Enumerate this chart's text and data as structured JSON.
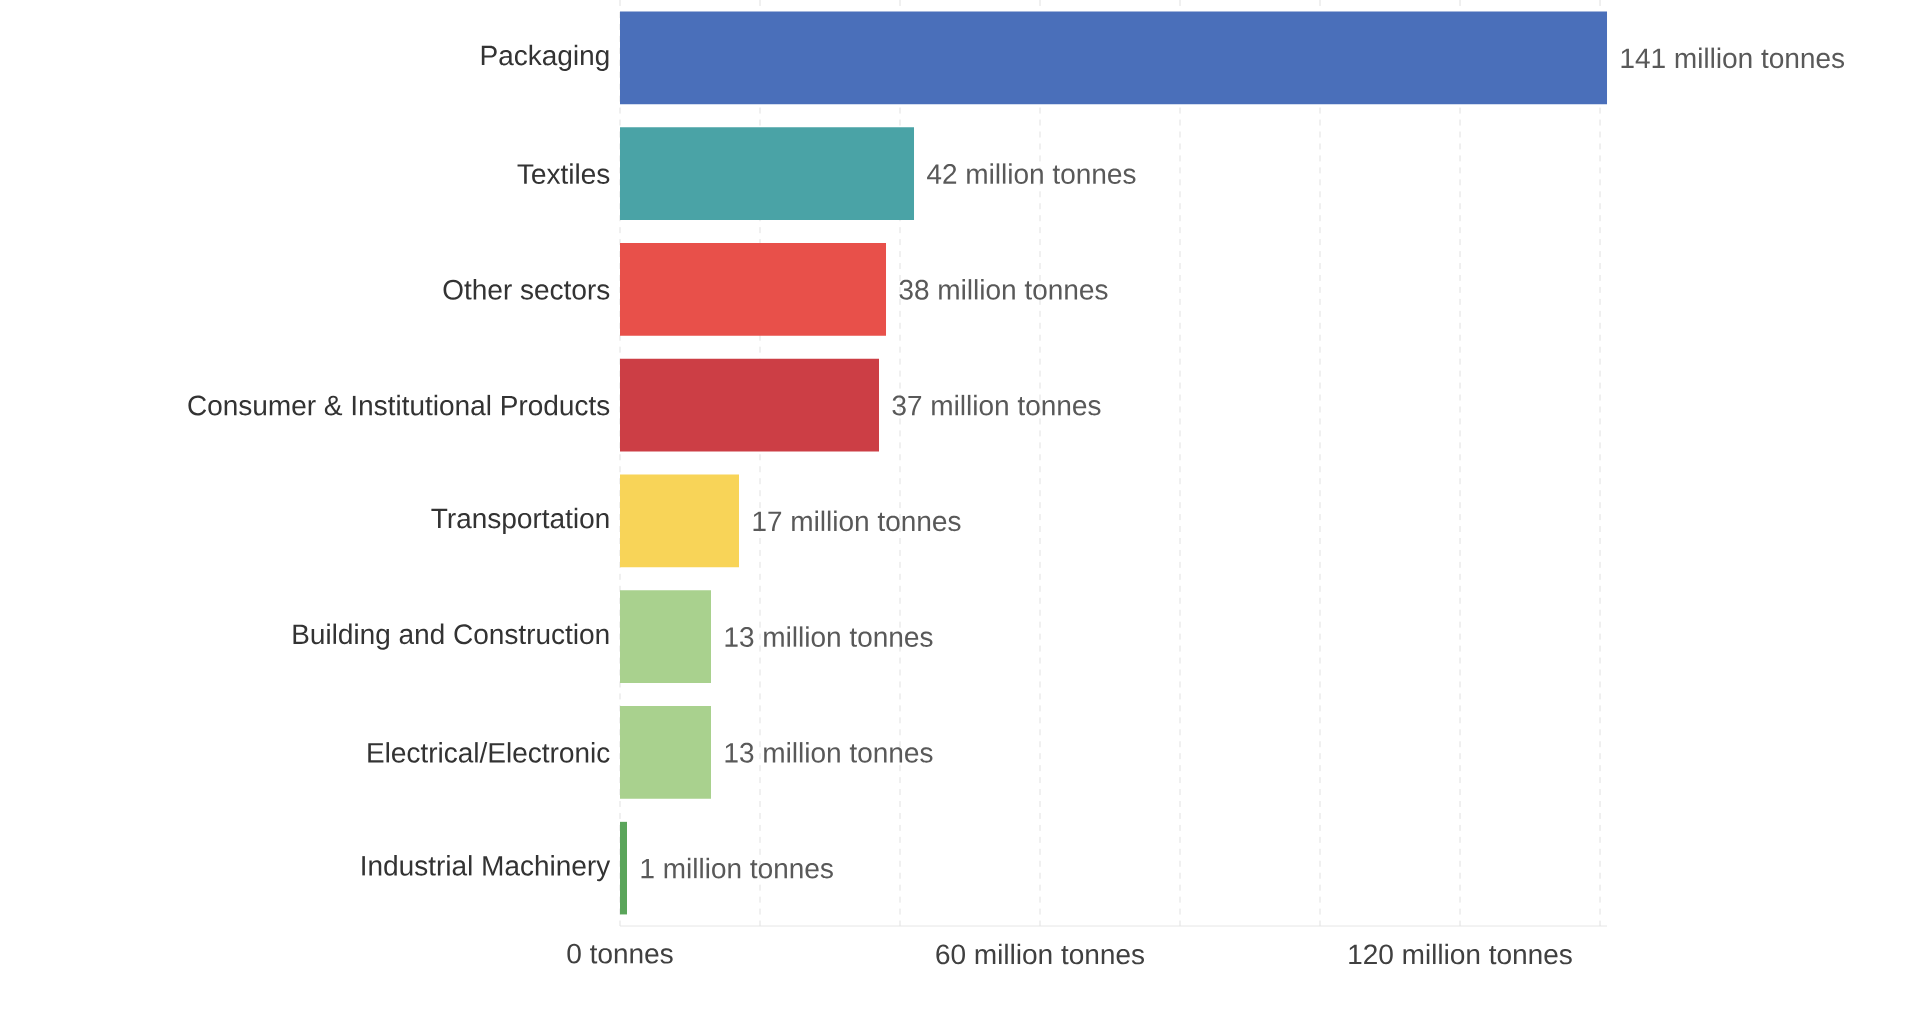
{
  "chart_data": {
    "type": "bar",
    "orientation": "horizontal",
    "categories": [
      "Packaging",
      "Textiles",
      "Other sectors",
      "Consumer & Institutional Products",
      "Transportation",
      "Building and Construction",
      "Electrical/Electronic",
      "Industrial Machinery"
    ],
    "values": [
      141,
      42,
      38,
      37,
      17,
      13,
      13,
      1
    ],
    "colors": [
      "#4a6fba",
      "#4aa3a6",
      "#e8504a",
      "#cc3e45",
      "#f8d458",
      "#a9d18e",
      "#a9d18e",
      "#5aa55a"
    ],
    "value_labels": [
      "141 million tonnes",
      "42 million tonnes",
      "38 million tonnes",
      "37 million tonnes",
      "17 million tonnes",
      "13 million tonnes",
      "13 million tonnes",
      "1 million tonnes"
    ],
    "xlim": [
      0,
      141
    ],
    "xticks": [
      {
        "value": 0,
        "label": "0 tonnes"
      },
      {
        "value": 20,
        "label": null
      },
      {
        "value": 40,
        "label": null
      },
      {
        "value": 60,
        "label": "60 million tonnes"
      },
      {
        "value": 80,
        "label": null
      },
      {
        "value": 100,
        "label": null
      },
      {
        "value": 120,
        "label": "120 million tonnes"
      },
      {
        "value": 140,
        "label": null
      }
    ],
    "grid": "x"
  }
}
